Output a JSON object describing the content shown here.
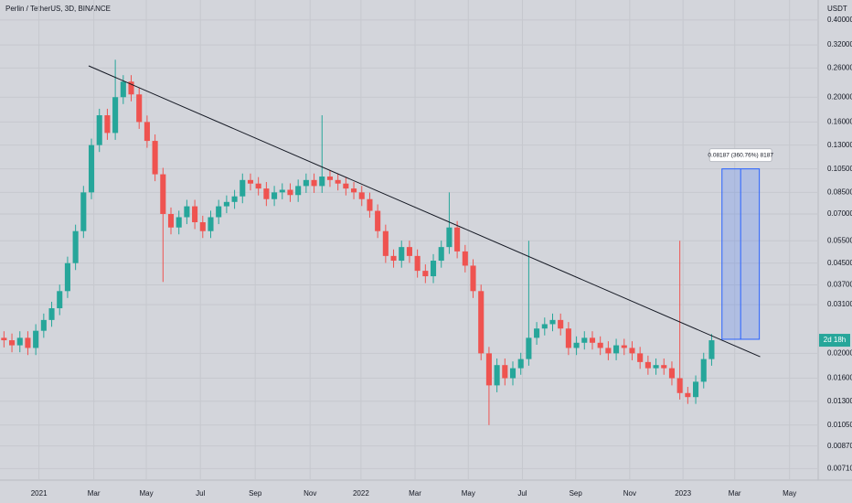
{
  "chart_data": {
    "type": "candlestick",
    "title": "Perlin / TetherUS, 3D, BINANCE",
    "y_unit": "USDT",
    "log_scale": true,
    "grid": true,
    "up_color": "#26a69a",
    "down_color": "#ef5350",
    "categories": [
      null,
      null,
      null,
      null,
      null,
      null,
      null,
      null,
      null,
      null,
      null,
      null,
      null,
      null,
      null,
      null,
      null,
      null,
      null,
      null,
      null,
      null,
      null,
      null,
      null,
      null,
      null,
      null,
      null,
      null,
      null,
      null,
      null,
      null,
      null,
      null,
      null,
      null,
      null,
      null,
      null,
      null,
      null,
      null,
      null,
      null,
      null,
      null,
      null,
      null,
      null,
      null,
      null,
      null,
      null,
      null,
      null,
      null,
      null,
      null,
      null,
      null,
      null,
      null,
      null,
      null,
      null,
      null,
      null,
      null,
      null,
      null,
      null,
      null,
      null,
      null,
      null,
      null,
      null,
      null,
      null,
      null,
      null,
      null,
      null,
      null,
      null,
      null,
      null,
      null
    ],
    "open": [
      0.023,
      0.0225,
      0.0215,
      0.023,
      0.021,
      0.0245,
      0.027,
      0.03,
      0.035,
      0.045,
      0.06,
      0.085,
      0.13,
      0.17,
      0.145,
      0.2,
      0.23,
      0.205,
      0.16,
      0.135,
      0.1,
      0.07,
      0.062,
      0.068,
      0.075,
      0.065,
      0.06,
      0.068,
      0.075,
      0.078,
      0.082,
      0.095,
      0.092,
      0.088,
      0.08,
      0.085,
      0.087,
      0.083,
      0.09,
      0.095,
      0.09,
      0.098,
      0.095,
      0.092,
      0.088,
      0.085,
      0.08,
      0.072,
      0.06,
      0.048,
      0.046,
      0.052,
      0.048,
      0.042,
      0.04,
      0.046,
      0.052,
      0.062,
      0.05,
      0.044,
      0.035,
      0.02,
      0.015,
      0.018,
      0.016,
      0.0175,
      0.019,
      0.023,
      0.025,
      0.026,
      0.027,
      0.025,
      0.021,
      0.022,
      0.023,
      0.022,
      0.021,
      0.02,
      0.0215,
      0.021,
      0.02,
      0.0185,
      0.0175,
      0.018,
      0.0175,
      0.016,
      0.014,
      0.0135,
      0.0155,
      0.019
    ],
    "high": [
      0.0244,
      0.0239,
      0.0244,
      0.0244,
      0.026,
      0.0286,
      0.0318,
      0.0371,
      0.0477,
      0.0636,
      0.0901,
      0.1378,
      0.1802,
      0.1802,
      0.28,
      0.2438,
      0.2438,
      0.2173,
      0.1696,
      0.1431,
      0.106,
      0.0742,
      0.0721,
      0.0795,
      0.0795,
      0.0689,
      0.0721,
      0.0795,
      0.0827,
      0.0869,
      0.1007,
      0.1007,
      0.0975,
      0.0933,
      0.0901,
      0.0922,
      0.0922,
      0.0954,
      0.1007,
      0.1007,
      0.17,
      0.1039,
      0.1007,
      0.0975,
      0.0933,
      0.0901,
      0.0848,
      0.0763,
      0.0636,
      0.0509,
      0.0551,
      0.0551,
      0.0509,
      0.0445,
      0.0488,
      0.0551,
      0.085,
      0.0657,
      0.053,
      0.0466,
      0.0371,
      0.0212,
      0.0191,
      0.0191,
      0.0186,
      0.0201,
      0.055,
      0.0265,
      0.0276,
      0.0286,
      0.0286,
      0.0265,
      0.0233,
      0.0244,
      0.0244,
      0.0233,
      0.0223,
      0.0228,
      0.0228,
      0.0223,
      0.0212,
      0.0196,
      0.0191,
      0.0191,
      0.0186,
      0.055,
      0.0148,
      0.0164,
      0.0201,
      0.0238
    ],
    "low": [
      0.0211,
      0.0202,
      0.0202,
      0.0197,
      0.0197,
      0.023,
      0.0254,
      0.0282,
      0.0329,
      0.0423,
      0.0564,
      0.0799,
      0.1222,
      0.1363,
      0.1363,
      0.188,
      0.1927,
      0.1504,
      0.1269,
      0.094,
      0.038,
      0.0583,
      0.0583,
      0.0639,
      0.0611,
      0.0564,
      0.0564,
      0.0639,
      0.0705,
      0.0733,
      0.0771,
      0.0865,
      0.0827,
      0.0752,
      0.0752,
      0.0799,
      0.078,
      0.078,
      0.0846,
      0.0846,
      0.0846,
      0.0893,
      0.0865,
      0.0827,
      0.0799,
      0.0752,
      0.0677,
      0.0564,
      0.0451,
      0.0432,
      0.0432,
      0.0451,
      0.0395,
      0.0376,
      0.0376,
      0.0432,
      0.0489,
      0.047,
      0.0414,
      0.0329,
      0.0188,
      0.0105,
      0.0141,
      0.015,
      0.015,
      0.0165,
      0.0179,
      0.0216,
      0.0235,
      0.0244,
      0.0235,
      0.0197,
      0.0197,
      0.0207,
      0.0207,
      0.0197,
      0.0188,
      0.0188,
      0.0197,
      0.0188,
      0.0174,
      0.0165,
      0.0165,
      0.0165,
      0.015,
      0.0132,
      0.0127,
      0.0127,
      0.0146,
      0.0179
    ],
    "close": [
      0.0225,
      0.0215,
      0.023,
      0.021,
      0.0245,
      0.027,
      0.03,
      0.035,
      0.045,
      0.06,
      0.085,
      0.13,
      0.17,
      0.145,
      0.2,
      0.23,
      0.205,
      0.16,
      0.135,
      0.1,
      0.07,
      0.062,
      0.068,
      0.075,
      0.065,
      0.06,
      0.068,
      0.075,
      0.078,
      0.082,
      0.095,
      0.092,
      0.088,
      0.08,
      0.085,
      0.087,
      0.083,
      0.09,
      0.095,
      0.09,
      0.098,
      0.095,
      0.092,
      0.088,
      0.085,
      0.08,
      0.072,
      0.06,
      0.048,
      0.046,
      0.052,
      0.048,
      0.042,
      0.04,
      0.046,
      0.052,
      0.062,
      0.05,
      0.044,
      0.035,
      0.02,
      0.015,
      0.018,
      0.016,
      0.0175,
      0.019,
      0.023,
      0.025,
      0.026,
      0.027,
      0.025,
      0.021,
      0.022,
      0.023,
      0.022,
      0.021,
      0.02,
      0.0215,
      0.021,
      0.02,
      0.0185,
      0.0175,
      0.018,
      0.0175,
      0.016,
      0.014,
      0.0135,
      0.0155,
      0.019,
      0.0225
    ],
    "xlim": [
      0,
      102.9
    ],
    "xticks": [
      {
        "value": 4.9,
        "label": "2021"
      },
      {
        "value": 11.8,
        "label": "Mar"
      },
      {
        "value": 18.4,
        "label": "May"
      },
      {
        "value": 25.2,
        "label": "Jul"
      },
      {
        "value": 32.1,
        "label": "Sep"
      },
      {
        "value": 39.0,
        "label": "Nov"
      },
      {
        "value": 45.4,
        "label": "2022"
      },
      {
        "value": 52.2,
        "label": "Mar"
      },
      {
        "value": 58.9,
        "label": "May"
      },
      {
        "value": 65.7,
        "label": "Jul"
      },
      {
        "value": 72.4,
        "label": "Sep"
      },
      {
        "value": 79.2,
        "label": "Nov"
      },
      {
        "value": 85.9,
        "label": "2023"
      },
      {
        "value": 92.4,
        "label": "Mar"
      },
      {
        "value": 99.3,
        "label": "May"
      }
    ],
    "ylim": [
      0.0064,
      0.479
    ],
    "yticks": [
      {
        "value": 0.4,
        "label": "0.40000"
      },
      {
        "value": 0.32,
        "label": "0.32000"
      },
      {
        "value": 0.26,
        "label": "0.26000"
      },
      {
        "value": 0.2,
        "label": "0.20000"
      },
      {
        "value": 0.16,
        "label": "0.16000"
      },
      {
        "value": 0.13,
        "label": "0.13000"
      },
      {
        "value": 0.105,
        "label": "0.10500"
      },
      {
        "value": 0.085,
        "label": "0.08500"
      },
      {
        "value": 0.07,
        "label": "0.07000"
      },
      {
        "value": 0.055,
        "label": "0.05500"
      },
      {
        "value": 0.045,
        "label": "0.04500"
      },
      {
        "value": 0.037,
        "label": "0.03700"
      },
      {
        "value": 0.031,
        "label": "0.03100"
      },
      {
        "value": 0.02,
        "label": "0.02000"
      },
      {
        "value": 0.016,
        "label": "0.01600"
      },
      {
        "value": 0.013,
        "label": "0.01300"
      },
      {
        "value": 0.0105,
        "label": "0.01050"
      },
      {
        "value": 0.0087,
        "label": "0.00870"
      },
      {
        "value": 0.0071,
        "label": "0.00710"
      }
    ],
    "trendline": {
      "x": [
        11.15,
        95.6
      ],
      "y": [
        0.265,
        0.0194
      ],
      "color": "#131722"
    },
    "measure": {
      "label": "0.08187 (360.76%) 8187",
      "x": [
        90.8,
        95.5
      ],
      "y": [
        0.0227,
        0.105
      ],
      "color": "#2962ff"
    },
    "price_label": "2d 18h"
  }
}
